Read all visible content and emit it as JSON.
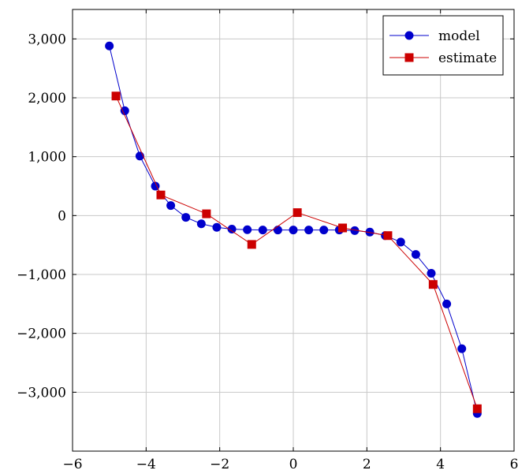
{
  "chart_data": {
    "type": "line",
    "title": "",
    "xlabel": "",
    "ylabel": "",
    "xlim": [
      -6,
      6
    ],
    "ylim": [
      -4000,
      3500
    ],
    "grid": true,
    "legend_position": "top-right",
    "x_ticks": [
      -6,
      -4,
      -2,
      0,
      2,
      4,
      6
    ],
    "x_tick_labels": [
      "−6",
      "−4",
      "−2",
      "0",
      "2",
      "4",
      "6"
    ],
    "y_ticks": [
      3000,
      2000,
      1000,
      0,
      -1000,
      -2000,
      -3000
    ],
    "y_tick_labels": [
      "3,000",
      "2,000",
      "1,000",
      "0",
      "−1,000",
      "−2,000",
      "−3,000"
    ],
    "series": [
      {
        "name": "model",
        "color": "#0000cc",
        "marker": "circle",
        "x": [
          -5,
          -4.58,
          -4.17,
          -3.75,
          -3.33,
          -2.92,
          -2.5,
          -2.08,
          -1.67,
          -1.25,
          -0.83,
          -0.42,
          0,
          0.42,
          0.83,
          1.25,
          1.67,
          2.08,
          2.5,
          2.92,
          3.33,
          3.75,
          4.17,
          4.58,
          5
        ],
        "y": [
          2880,
          1780,
          1010,
          500,
          170,
          -30,
          -140,
          -200,
          -230,
          -240,
          -245,
          -245,
          -245,
          -245,
          -245,
          -245,
          -255,
          -280,
          -340,
          -450,
          -660,
          -980,
          -1500,
          -2260,
          -3360
        ]
      },
      {
        "name": "estimate",
        "color": "#cc0000",
        "marker": "square",
        "x": [
          -4.82,
          -3.6,
          -2.36,
          -1.13,
          0.11,
          1.34,
          2.57,
          3.8,
          5
        ],
        "y": [
          2030,
          350,
          30,
          -490,
          50,
          -210,
          -340,
          -1170,
          -3280
        ]
      }
    ]
  }
}
